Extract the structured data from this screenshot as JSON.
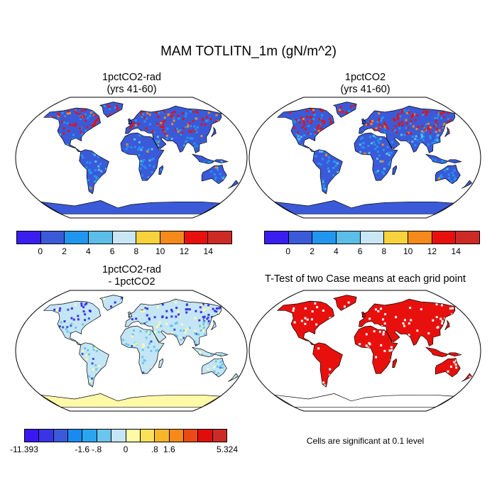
{
  "title": "MAM TOTLITN_1m (gN/m^2)",
  "panels": {
    "top_left": {
      "title": "1pctCO2-rad\n(yrs 41-60)"
    },
    "top_right": {
      "title": "1pctCO2\n(yrs 41-60)"
    },
    "bottom_left": {
      "title": "1pctCO2-rad\n- 1pctCO2"
    },
    "bottom_right": {
      "title": "T-Test of two Case means at each grid point"
    }
  },
  "colorbar_abs": {
    "colors": [
      "#3a1ef0",
      "#3b5ad9",
      "#2196f0",
      "#5bbde8",
      "#c9e6f5",
      "#f7d23c",
      "#f58a1a",
      "#e8100d",
      "#cd2a26"
    ],
    "ticks": [
      "0",
      "2",
      "4",
      "6",
      "8",
      "10",
      "12",
      "14"
    ]
  },
  "colorbar_diff": {
    "colors": [
      "#3b17f0",
      "#3a34e6",
      "#3b5ad9",
      "#1b8af0",
      "#2aa6f0",
      "#6ac6ec",
      "#c4e5f6",
      "#fff9a8",
      "#fbe05a",
      "#f7b62a",
      "#f58a1a",
      "#ec4a14",
      "#e00d0b",
      "#cc2a26"
    ],
    "ticks": [
      "-11.393",
      "-1.6",
      "-.8",
      "0",
      ".8",
      "1.6",
      "5.324"
    ]
  },
  "ttest_note": "Cells are significant at 0.1 level",
  "map_colors": {
    "top_land": "#3b5ad9",
    "top_hot": "#e8100d",
    "top_mid": "#2196f0",
    "top_warm": "#f58a1a",
    "top_light": "#5bbde8",
    "diff_land": "#c4e5f6",
    "diff_light": "#6ac6ec",
    "diff_blue": "#3a34e6",
    "diff_yellow": "#fff9a8",
    "antarctic_diff": "#fff9a8",
    "ttest_fill": "#e8100d"
  }
}
